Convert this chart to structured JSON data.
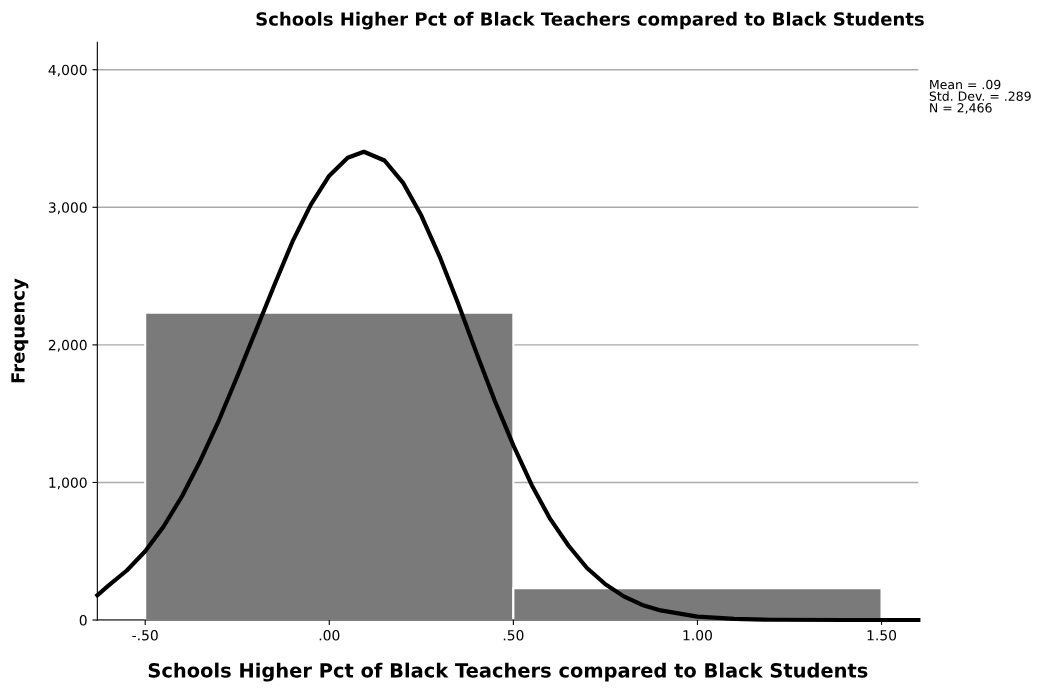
{
  "chart_data": {
    "type": "histogram",
    "title": "Schools Higher Pct of Black Teachers compared to Black Students",
    "xlabel": "Schools Higher Pct of Black Teachers compared to Black Students",
    "ylabel": "Frequency",
    "bins": [
      -0.5,
      0.5,
      1.5
    ],
    "values": [
      2234,
      232
    ],
    "color": "#7a7a7a",
    "series": [
      {
        "type": "line",
        "color": "#000000",
        "x": [
          -0.63,
          -0.6,
          -0.55,
          -0.5,
          -0.45,
          -0.4,
          -0.35,
          -0.3,
          -0.25,
          -0.2,
          -0.15,
          -0.1,
          -0.05,
          0.0,
          0.05,
          0.094,
          0.15,
          0.2,
          0.25,
          0.3,
          0.35,
          0.4,
          0.45,
          0.5,
          0.55,
          0.6,
          0.65,
          0.7,
          0.75,
          0.8,
          0.85,
          0.9,
          1.0,
          1.1,
          1.2,
          1.4,
          1.6
        ],
        "values": [
          180,
          250,
          360,
          500,
          680,
          900,
          1160,
          1450,
          1770,
          2100,
          2430,
          2750,
          3020,
          3230,
          3360,
          3404,
          3340,
          3180,
          2940,
          2640,
          2300,
          1940,
          1590,
          1270,
          980,
          735,
          540,
          378,
          260,
          172,
          110,
          70,
          25,
          8,
          2,
          0,
          0
        ]
      }
    ],
    "xlim": [
      -0.63,
      1.6
    ],
    "ylim": [
      0,
      4200
    ],
    "xticks": [
      {
        "value": -0.5,
        "label": "-.50"
      },
      {
        "value": 0,
        "label": ".00"
      },
      {
        "value": 0.5,
        "label": ".50"
      },
      {
        "value": 1,
        "label": "1.00"
      },
      {
        "value": 1.5,
        "label": "1.50"
      }
    ],
    "yticks": [
      {
        "value": 0,
        "label": "0"
      },
      {
        "value": 1000,
        "label": "1,000"
      },
      {
        "value": 2000,
        "label": "2,000"
      },
      {
        "value": 3000,
        "label": "3,000"
      },
      {
        "value": 4000,
        "label": "4,000"
      }
    ],
    "grid": "y",
    "annotations": [
      "Mean = .09\nStd. Dev. = .289\nN = 2,466"
    ]
  }
}
